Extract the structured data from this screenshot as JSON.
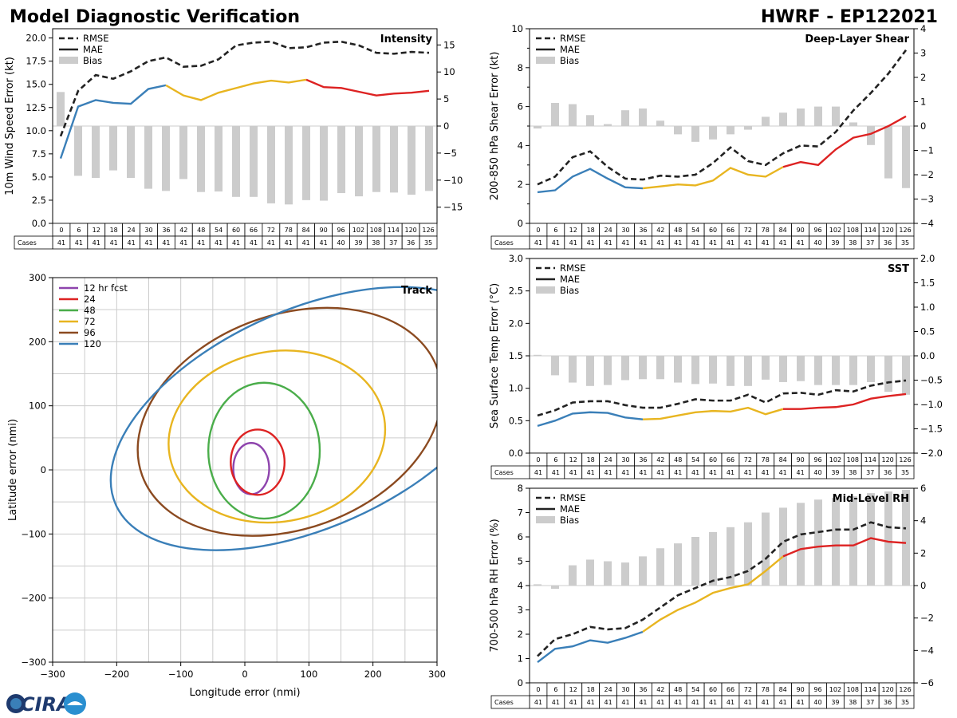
{
  "header": {
    "title": "Model Diagnostic Verification",
    "model_storm": "HWRF - EP122021"
  },
  "logo": {
    "text": "CIRA"
  },
  "colors": {
    "rmse": "#222222",
    "mae_early": "#3a7fb8",
    "mae_mid": "#e8b520",
    "mae_late": "#dd2222",
    "bias": "#cccccc",
    "track_12": "#8e44ad",
    "track_24": "#dd2222",
    "track_48": "#4aad4a",
    "track_72": "#e8b520",
    "track_96": "#8b4a20",
    "track_120": "#3a7fb8"
  },
  "legend": {
    "rmse": "RMSE",
    "mae": "MAE",
    "bias": "Bias"
  },
  "cases_label": "Cases",
  "hours": [
    0,
    6,
    12,
    18,
    24,
    30,
    36,
    42,
    48,
    54,
    60,
    66,
    72,
    78,
    84,
    90,
    96,
    102,
    108,
    114,
    120,
    126
  ],
  "cases": [
    41,
    41,
    41,
    41,
    41,
    41,
    41,
    41,
    41,
    41,
    41,
    41,
    41,
    41,
    41,
    41,
    40,
    39,
    38,
    37,
    36,
    35
  ],
  "chart_data": [
    {
      "id": "intensity",
      "type": "line",
      "title": "Intensity",
      "ylabel": "10m Wind Speed Error (kt)",
      "ylim": [
        0,
        21
      ],
      "yticks": [
        "0.0",
        "2.5",
        "5.0",
        "7.5",
        "10.0",
        "12.5",
        "15.0",
        "17.5",
        "20.0"
      ],
      "y2lim": [
        -18,
        18
      ],
      "y2ticks": [
        -15,
        -10,
        -5,
        0,
        5,
        10,
        15
      ],
      "rmse": [
        9.4,
        14.3,
        16.0,
        15.6,
        16.4,
        17.5,
        17.9,
        16.9,
        17.0,
        17.7,
        19.2,
        19.5,
        19.6,
        18.9,
        19.0,
        19.5,
        19.6,
        19.2,
        18.4,
        18.3,
        18.5,
        18.4
      ],
      "mae": [
        7.0,
        12.6,
        13.3,
        13.0,
        12.9,
        14.5,
        14.9,
        13.8,
        13.3,
        14.1,
        14.6,
        15.1,
        15.4,
        15.2,
        15.5,
        14.7,
        14.6,
        14.2,
        13.8,
        14.0,
        14.1,
        14.3
      ],
      "bias": [
        6.3,
        -9.2,
        -9.6,
        -8.2,
        -9.6,
        -11.6,
        -12.0,
        -9.8,
        -12.2,
        -12.1,
        -13.1,
        -13.1,
        -14.3,
        -14.5,
        -13.7,
        -13.8,
        -12.4,
        -13.0,
        -12.2,
        -12.3,
        -12.7,
        -12.0
      ]
    },
    {
      "id": "shear",
      "type": "line",
      "title": "Deep-Layer Shear",
      "ylabel": "200-850 hPa Shear Error (kt)",
      "ylim": [
        0,
        10
      ],
      "yticks": [
        0,
        2,
        4,
        6,
        8,
        10
      ],
      "y2lim": [
        -4,
        4
      ],
      "y2ticks": [
        -4,
        -3,
        -2,
        -1,
        0,
        1,
        2,
        3,
        4
      ],
      "rmse": [
        2.0,
        2.4,
        3.4,
        3.7,
        2.9,
        2.3,
        2.25,
        2.45,
        2.4,
        2.5,
        3.1,
        3.9,
        3.2,
        3.0,
        3.6,
        4.0,
        3.95,
        4.7,
        5.8,
        6.7,
        7.7,
        8.9
      ],
      "mae": [
        1.6,
        1.7,
        2.4,
        2.8,
        2.3,
        1.85,
        1.8,
        1.9,
        2.0,
        1.95,
        2.2,
        2.85,
        2.5,
        2.4,
        2.9,
        3.15,
        3.0,
        3.8,
        4.4,
        4.6,
        5.0,
        5.5
      ],
      "bias": [
        -0.1,
        0.95,
        0.9,
        0.45,
        0.08,
        0.65,
        0.72,
        0.22,
        -0.34,
        -0.65,
        -0.55,
        -0.34,
        -0.15,
        0.38,
        0.55,
        0.72,
        0.8,
        0.8,
        0.15,
        -0.78,
        -2.15,
        -2.55
      ]
    },
    {
      "id": "sst",
      "type": "line",
      "title": "SST",
      "ylabel": "Sea Surface Temp Error (°C)",
      "ylim": [
        0,
        3
      ],
      "yticks": [
        "0.0",
        "0.5",
        "1.0",
        "1.5",
        "2.0",
        "2.5",
        "3.0"
      ],
      "y2lim": [
        -2,
        2
      ],
      "y2ticks": [
        "−2.0",
        "−1.5",
        "−1.0",
        "−0.5",
        "0.0",
        "0.5",
        "1.0",
        "1.5",
        "2.0"
      ],
      "rmse": [
        0.58,
        0.66,
        0.78,
        0.8,
        0.8,
        0.74,
        0.7,
        0.7,
        0.76,
        0.83,
        0.81,
        0.81,
        0.9,
        0.78,
        0.92,
        0.93,
        0.9,
        0.97,
        0.95,
        1.04,
        1.09,
        1.12
      ],
      "mae": [
        0.42,
        0.5,
        0.61,
        0.63,
        0.62,
        0.55,
        0.52,
        0.53,
        0.58,
        0.63,
        0.65,
        0.64,
        0.7,
        0.6,
        0.68,
        0.68,
        0.7,
        0.71,
        0.75,
        0.84,
        0.88,
        0.91
      ],
      "bias": [
        0.02,
        -0.4,
        -0.55,
        -0.62,
        -0.6,
        -0.5,
        -0.48,
        -0.48,
        -0.55,
        -0.58,
        -0.57,
        -0.62,
        -0.62,
        -0.49,
        -0.54,
        -0.52,
        -0.6,
        -0.6,
        -0.6,
        -0.54,
        -0.74,
        -0.8
      ]
    },
    {
      "id": "rh",
      "type": "line",
      "title": "Mid-Level RH",
      "ylabel": "700-500 hPa RH Error (%)",
      "ylim": [
        0,
        8
      ],
      "yticks": [
        0,
        1,
        2,
        3,
        4,
        5,
        6,
        7,
        8
      ],
      "y2lim": [
        -6,
        6
      ],
      "y2ticks": [
        -6,
        -4,
        -2,
        0,
        2,
        4,
        6
      ],
      "rmse": [
        1.1,
        1.8,
        2.0,
        2.3,
        2.2,
        2.25,
        2.6,
        3.1,
        3.6,
        3.9,
        4.2,
        4.35,
        4.6,
        5.1,
        5.8,
        6.1,
        6.2,
        6.3,
        6.3,
        6.6,
        6.4,
        6.35
      ],
      "mae": [
        0.85,
        1.4,
        1.5,
        1.75,
        1.65,
        1.85,
        2.1,
        2.6,
        3.0,
        3.3,
        3.7,
        3.9,
        4.05,
        4.6,
        5.2,
        5.5,
        5.6,
        5.65,
        5.65,
        5.95,
        5.8,
        5.75
      ],
      "bias": [
        0.08,
        -0.2,
        1.25,
        1.6,
        1.5,
        1.42,
        1.8,
        2.3,
        2.6,
        3.0,
        3.3,
        3.6,
        3.9,
        4.5,
        4.8,
        5.1,
        5.3,
        5.4,
        5.5,
        5.7,
        5.8,
        5.9
      ]
    },
    {
      "id": "track",
      "type": "ellipse",
      "title": "Track",
      "xlabel": "Longitude error (nmi)",
      "ylabel": "Latitude error (nmi)",
      "xlim": [
        -300,
        300
      ],
      "ylim": [
        -300,
        300
      ],
      "xticks": [
        "−300",
        "−200",
        "−100",
        "0",
        "100",
        "200",
        "300"
      ],
      "yticks": [
        "−300",
        "−200",
        "−100",
        "0",
        "100",
        "200",
        "300"
      ],
      "legend": [
        "12 hr fcst",
        "24",
        "48",
        "72",
        "96",
        "120"
      ],
      "ellipses": [
        {
          "label": "12 hr fcst",
          "cx": 10,
          "cy": 2,
          "rx": 28,
          "ry": 40,
          "angle": 0
        },
        {
          "label": "24",
          "cx": 20,
          "cy": 12,
          "rx": 42,
          "ry": 51,
          "angle": 0
        },
        {
          "label": "48",
          "cx": 30,
          "cy": 30,
          "rx": 87,
          "ry": 106,
          "angle": 0
        },
        {
          "label": "72",
          "cx": 50,
          "cy": 52,
          "rx": 170,
          "ry": 133,
          "angle": -10
        },
        {
          "label": "96",
          "cx": 70,
          "cy": 75,
          "rx": 245,
          "ry": 167,
          "angle": -20
        },
        {
          "label": "120",
          "cx": 100,
          "cy": 80,
          "rx": 330,
          "ry": 170,
          "angle": -24
        }
      ]
    }
  ]
}
